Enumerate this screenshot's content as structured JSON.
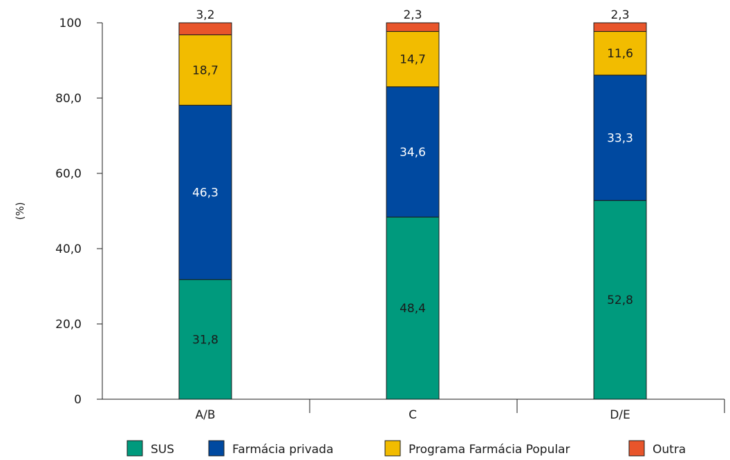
{
  "chart_data": {
    "type": "bar",
    "stacked": true,
    "categories": [
      "A/B",
      "C",
      "D/E"
    ],
    "series": [
      {
        "name": "SUS",
        "color": "#009a7d",
        "values": [
          31.8,
          48.4,
          52.8
        ],
        "labels": [
          "31,8",
          "48,4",
          "52,8"
        ],
        "label_color": "#1a1a1a"
      },
      {
        "name": "Farmácia privada",
        "color": "#0049a0",
        "values": [
          46.3,
          34.6,
          33.3
        ],
        "labels": [
          "46,3",
          "34,6",
          "33,3"
        ],
        "label_color": "#ffffff"
      },
      {
        "name": "Programa Farmácia Popular",
        "color": "#f2bc00",
        "values": [
          18.7,
          14.7,
          11.6
        ],
        "labels": [
          "18,7",
          "14,7",
          "11,6"
        ],
        "label_color": "#1a1a1a"
      },
      {
        "name": "Outra",
        "color": "#e8552b",
        "values": [
          3.2,
          2.3,
          2.3
        ],
        "labels": [
          "3,2",
          "2,3",
          "2,3"
        ],
        "label_color": "#1a1a1a",
        "label_position": "above"
      }
    ],
    "ylabel": "(%)",
    "ylim": [
      0,
      100
    ],
    "yticks": [
      0,
      20,
      40,
      60,
      80,
      100
    ],
    "ytick_labels": [
      "0",
      "20,0",
      "40,0",
      "60,0",
      "80,0",
      "100"
    ],
    "grid": false,
    "legend": "bottom"
  }
}
